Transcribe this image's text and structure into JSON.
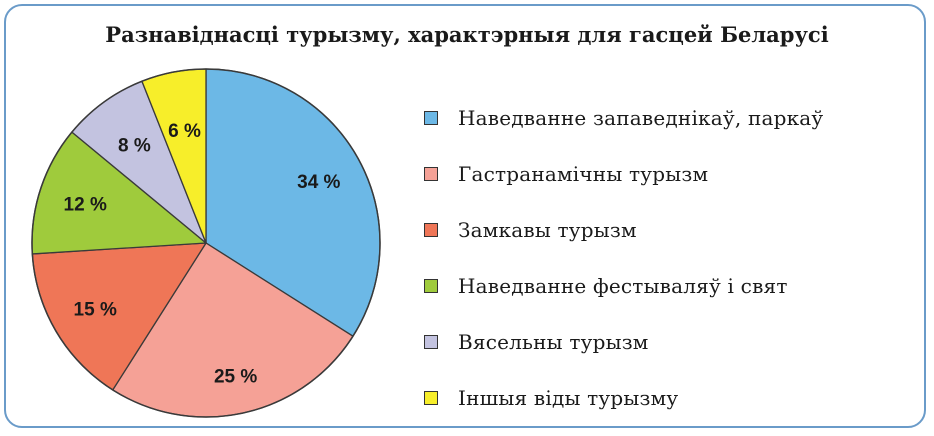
{
  "chart_data": {
    "type": "pie",
    "title": "Разнавіднасці турызму, характэрныя для гасцей Беларусі",
    "categories": [
      "Наведванне запаведнікаў, паркаў",
      "Гастранамічны турызм",
      "Замкавы турызм",
      "Наведванне фестываляў і свят",
      "Вясельны турызм",
      "Іншыя віды турызму"
    ],
    "values": [
      34,
      25,
      15,
      12,
      8,
      6
    ],
    "labels": [
      "34 %",
      "25 %",
      "15 %",
      "12 %",
      "8 %",
      "6 %"
    ],
    "colors": [
      "#6cb8e6",
      "#f5a196",
      "#ef7657",
      "#9fcb3c",
      "#c3c3e0",
      "#f7ee2a"
    ],
    "legend_placement": "right"
  }
}
